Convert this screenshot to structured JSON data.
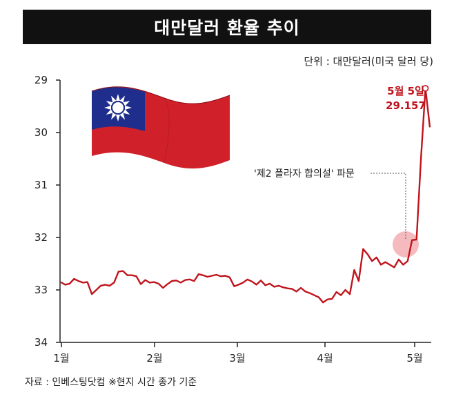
{
  "title": "대만달러 환율 추이",
  "unit_label": "단위 : 대만달러(미국 달러 당)",
  "source": "자료 : 인베스팅닷컴 ※현지 시간 종가 기준",
  "colors": {
    "line": "#c0141c",
    "highlight": "#f2a3a8",
    "axis": "#222222"
  },
  "flag": {
    "icon": "taiwan-flag-icon",
    "colors": [
      "#d0202a",
      "#1f2e8c",
      "#ffffff"
    ]
  },
  "chart_data": {
    "type": "line",
    "title": "대만달러 환율 추이",
    "ylabel": "",
    "xlabel": "",
    "y_inverted": true,
    "ylim": [
      34,
      29
    ],
    "yticks": [
      "29",
      "30",
      "31",
      "32",
      "33",
      "34"
    ],
    "xticks": [
      "1월",
      "2월",
      "3월",
      "4월",
      "5월"
    ],
    "grid": false,
    "series": [
      {
        "values": [
          32.85,
          32.9,
          32.88,
          32.79,
          32.83,
          32.86,
          32.85,
          33.08,
          33.0,
          32.92,
          32.9,
          32.92,
          32.86,
          32.65,
          32.64,
          32.72,
          32.72,
          32.74,
          32.89,
          32.81,
          32.86,
          32.85,
          32.88,
          32.96,
          32.89,
          32.83,
          32.82,
          32.86,
          32.81,
          32.8,
          32.83,
          32.7,
          32.72,
          32.75,
          32.73,
          32.71,
          32.74,
          32.73,
          32.76,
          32.93,
          32.9,
          32.86,
          32.8,
          32.84,
          32.9,
          32.82,
          32.91,
          32.88,
          32.94,
          32.92,
          32.95,
          32.97,
          32.98,
          33.03,
          32.96,
          33.03,
          33.06,
          33.1,
          33.14,
          33.24,
          33.18,
          33.17,
          33.04,
          33.1,
          33.0,
          33.08,
          32.62,
          32.83,
          32.22,
          32.32,
          32.45,
          32.38,
          32.52,
          32.47,
          32.52,
          32.57,
          32.42,
          32.52,
          32.45,
          32.05,
          32.04,
          30.5,
          29.157,
          29.9
        ]
      }
    ],
    "annotations": [
      {
        "text": "'제2 플라자 합의설' 파문"
      },
      {
        "text": "5월 5일"
      },
      {
        "text": "29.157"
      }
    ]
  }
}
